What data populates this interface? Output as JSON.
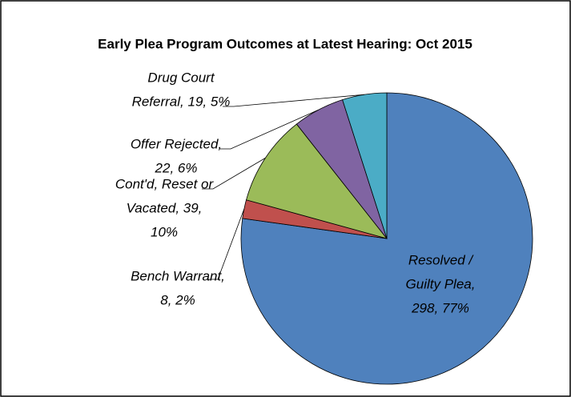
{
  "chart_data": {
    "type": "pie",
    "title": "Early Plea Program Outcomes at Latest Hearing: Oct 2015",
    "values": [
      298,
      8,
      39,
      22,
      19
    ],
    "data_labels": [
      [
        "Resolved /",
        "Guilty Plea,",
        "298, 77%"
      ],
      [
        "Bench Warrant,",
        "8, 2%"
      ],
      [
        "Cont'd, Reset or",
        "Vacated, 39,",
        "10%"
      ],
      [
        "Offer Rejected,",
        "22, 6%"
      ],
      [
        "Drug Court",
        "Referral, 19, 5%"
      ]
    ],
    "colors": [
      "#4f81bd",
      "#c0504d",
      "#9bbb59",
      "#8064a2",
      "#4bacc6"
    ]
  }
}
